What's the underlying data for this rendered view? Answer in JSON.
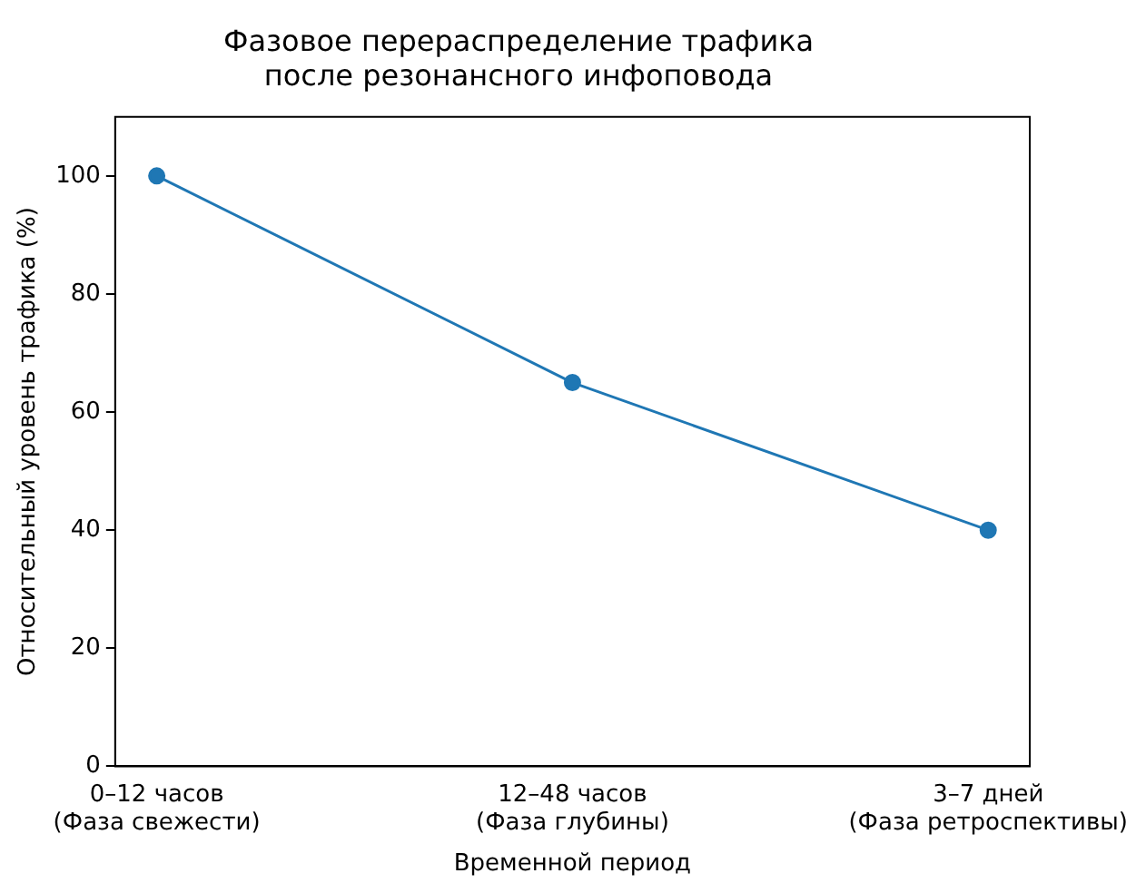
{
  "chart_data": {
    "type": "line",
    "title": "Фазовое перераспределение трафика\nпосле резонансного инфоповода",
    "xlabel": "Временной период",
    "ylabel": "Относительный уровень трафика (%)",
    "categories": [
      "0–12 часов\n(Фаза свежести)",
      "12–48 часов\n(Фаза глубины)",
      "3–7 дней\n(Фаза ретроспективы)"
    ],
    "series": [
      {
        "color": "#1f77b4",
        "values": [
          100,
          65,
          40
        ]
      }
    ],
    "ylim": [
      0,
      110
    ],
    "yticks": [
      0,
      20,
      40,
      60,
      80,
      100
    ],
    "marker": "circle",
    "line_style": "solid",
    "grid": false,
    "legend": false
  }
}
